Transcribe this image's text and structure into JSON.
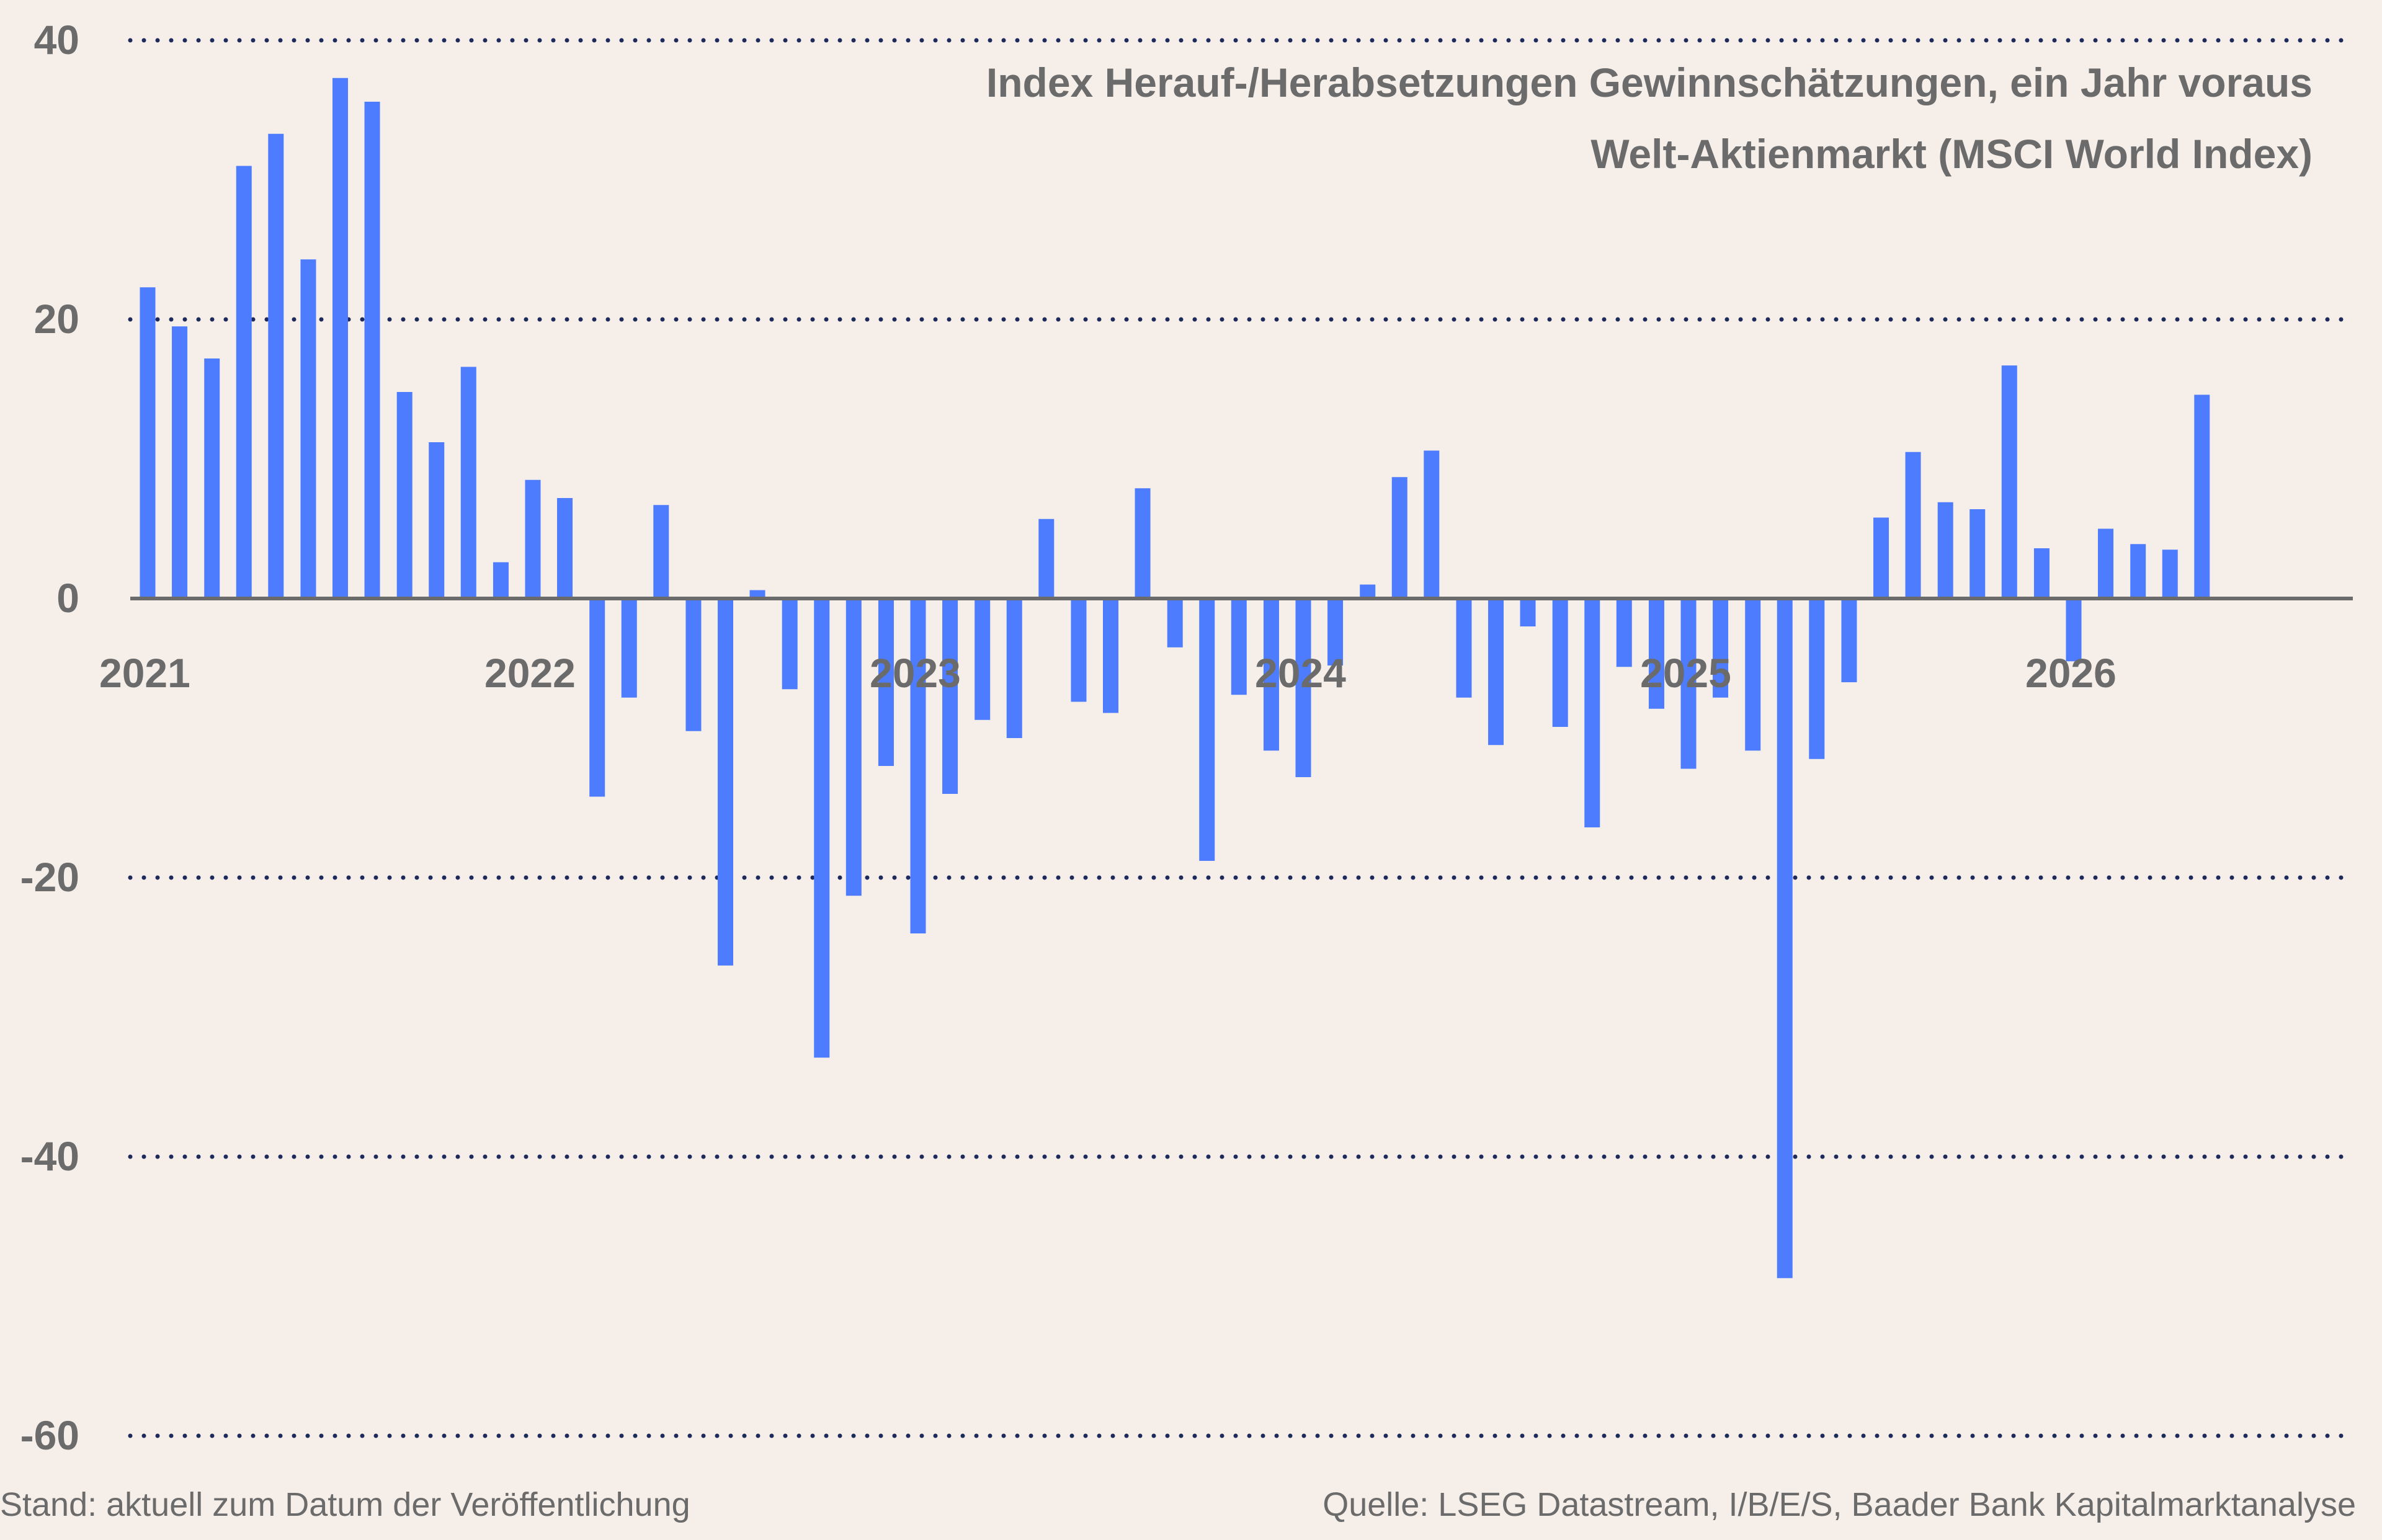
{
  "chart_data": {
    "type": "bar",
    "title": "Index Herauf-/Herabsetzungen Gewinnschätzungen, ein Jahr voraus",
    "subtitle": "Welt-Aktienmarkt (MSCI World Index)",
    "xlabel": "",
    "ylabel": "",
    "ylim": [
      -60,
      40
    ],
    "xlim": [
      2021.0,
      2026.75
    ],
    "yticks": [
      "40",
      "20",
      "0",
      "-20",
      "-40",
      "-60"
    ],
    "ytick_values": [
      40,
      20,
      0,
      -20,
      -40,
      -60
    ],
    "xticks": [
      "2021",
      "2022",
      "2023",
      "2024",
      "2025",
      "2026"
    ],
    "xtick_values": [
      2021,
      2022,
      2023,
      2024,
      2025,
      2026
    ],
    "grid": true,
    "colors": {
      "bar": "#4D7CFE",
      "grid": "#1F2A5C",
      "zero_line": "#6B6B6B",
      "text": "#6B6B6B",
      "background": "#F5EEE9"
    },
    "series": [
      {
        "x": [
          2021.0,
          2021.083,
          2021.167,
          2021.25,
          2021.333,
          2021.417,
          2021.5,
          2021.583,
          2021.667,
          2021.75,
          2021.833,
          2021.917,
          2022.0,
          2022.083,
          2022.167,
          2022.25,
          2022.333,
          2022.417,
          2022.5,
          2022.583,
          2022.667,
          2022.75,
          2022.833,
          2022.917,
          2023.0,
          2023.083,
          2023.167,
          2023.25,
          2023.333,
          2023.417,
          2023.5,
          2023.583,
          2023.667,
          2023.75,
          2023.833,
          2023.917,
          2024.0,
          2024.083,
          2024.167,
          2024.25,
          2024.333,
          2024.417,
          2024.5,
          2024.583,
          2024.667,
          2024.75,
          2024.833,
          2024.917,
          2025.0,
          2025.083,
          2025.167,
          2025.25,
          2025.333,
          2025.417,
          2025.5,
          2025.583,
          2025.667,
          2025.75,
          2025.833,
          2025.917,
          2026.0,
          2026.083,
          2026.167,
          2026.25,
          2026.333
        ],
        "values": [
          22.3,
          19.5,
          17.2,
          31.0,
          33.3,
          24.3,
          37.3,
          35.6,
          14.8,
          11.2,
          16.6,
          2.6,
          8.5,
          7.2,
          -14.2,
          -7.1,
          6.7,
          -9.5,
          -26.3,
          0.6,
          -6.5,
          -32.9,
          -21.3,
          -12.0,
          -24.0,
          -14.0,
          -8.7,
          -10.0,
          5.7,
          -7.4,
          -8.2,
          7.9,
          -3.5,
          -18.8,
          -6.9,
          -10.9,
          -12.8,
          -4.8,
          1.0,
          8.7,
          10.6,
          -7.1,
          -10.5,
          -2.0,
          -9.2,
          -16.4,
          -4.9,
          -7.9,
          -12.2,
          -7.1,
          -10.9,
          -48.7,
          -11.5,
          -6.0,
          5.8,
          10.5,
          6.9,
          6.4,
          16.7,
          3.6,
          -4.5,
          5.0,
          3.9,
          3.5,
          14.6
        ]
      }
    ]
  },
  "footer": {
    "left": "Stand: aktuell zum Datum der Veröffentlichung",
    "right": "Quelle: LSEG Datastream, I/B/E/S, Baader Bank Kapitalmarktanalyse"
  }
}
